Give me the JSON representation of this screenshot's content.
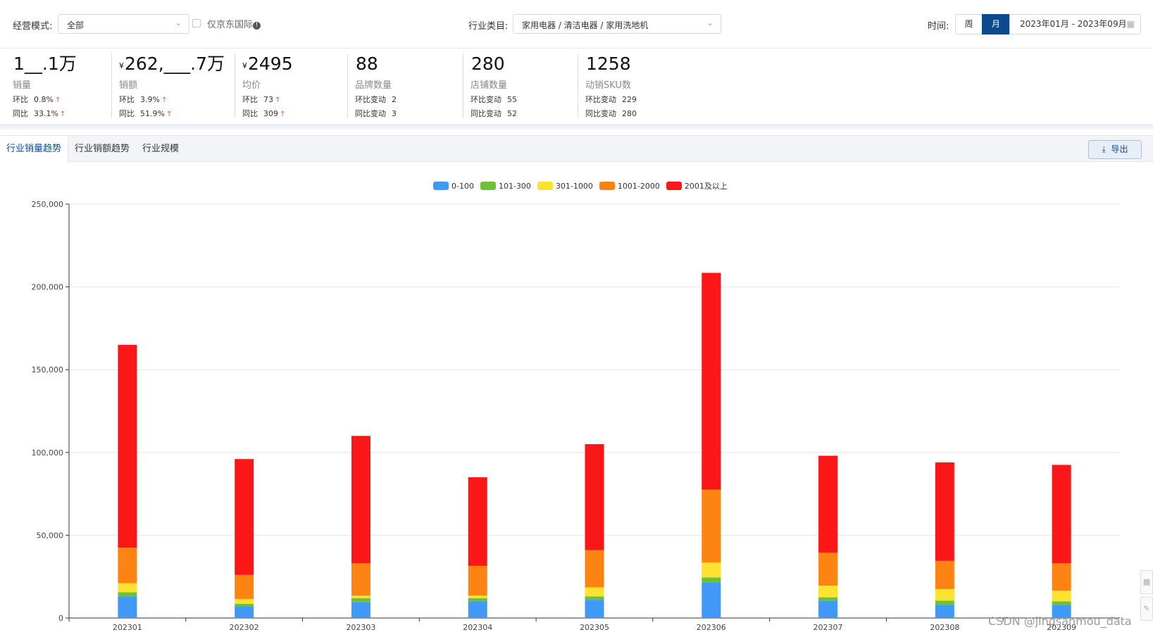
{
  "filters": {
    "mode_label": "经营模式:",
    "mode_value": "全部",
    "jd_intl_label": "仅京东国际",
    "category_label": "行业类目:",
    "category_value": "家用电器 / 清洁电器 / 家用洗地机",
    "time_label": "时间:",
    "week_btn": "周",
    "month_btn": "月",
    "date_range": "2023年01月 - 2023年09月"
  },
  "kpis": [
    {
      "value": "1__.1万",
      "prefix": "",
      "name": "销量",
      "row1_label": "环比",
      "row1_value": "0.8%",
      "row2_label": "同比",
      "row2_value": "33.1%",
      "arrows": true
    },
    {
      "value": "262,___.7万",
      "prefix": "¥",
      "name": "销额",
      "row1_label": "环比",
      "row1_value": "3.9%",
      "row2_label": "同比",
      "row2_value": "51.9%",
      "arrows": true
    },
    {
      "value": "2495",
      "prefix": "¥",
      "name": "均价",
      "row1_label": "环比",
      "row1_value": "73",
      "row2_label": "同比",
      "row2_value": "309",
      "arrows": true
    },
    {
      "value": "88",
      "prefix": "",
      "name": "品牌数量",
      "row1_label": "环比变动",
      "row1_value": "2",
      "row2_label": "同比变动",
      "row2_value": "3",
      "arrows": false
    },
    {
      "value": "280",
      "prefix": "",
      "name": "店铺数量",
      "row1_label": "环比变动",
      "row1_value": "55",
      "row2_label": "同比变动",
      "row2_value": "52",
      "arrows": false
    },
    {
      "value": "1258",
      "prefix": "",
      "name": "动销SKU数",
      "row1_label": "环比变动",
      "row1_value": "229",
      "row2_label": "同比变动",
      "row2_value": "280",
      "arrows": false
    }
  ],
  "tabs": [
    "行业销量趋势",
    "行业销额趋势",
    "行业规模"
  ],
  "export_label": "导出",
  "watermark": "CSDN @jingsanmou_data",
  "chart_data": {
    "type": "bar",
    "stacked": true,
    "categories": [
      "202301",
      "202302",
      "202303",
      "202304",
      "202305",
      "202306",
      "202307",
      "202308",
      "202309"
    ],
    "series": [
      {
        "name": "0-100",
        "color": "#4099f7",
        "values": [
          13000,
          7000,
          9500,
          10000,
          11000,
          21500,
          10500,
          8000,
          8000
        ]
      },
      {
        "name": "101-300",
        "color": "#6cc03a",
        "values": [
          2500,
          1500,
          2500,
          2000,
          2000,
          3000,
          2000,
          2500,
          2000
        ]
      },
      {
        "name": "301-1000",
        "color": "#fde22f",
        "values": [
          5500,
          3000,
          1500,
          1500,
          5500,
          9000,
          7000,
          7000,
          6500
        ]
      },
      {
        "name": "1001-2000",
        "color": "#fd8413",
        "values": [
          21500,
          14500,
          19500,
          18000,
          22500,
          44000,
          20000,
          17000,
          16500
        ]
      },
      {
        "name": "2001及以上",
        "color": "#fb1617",
        "values": [
          122500,
          70000,
          77000,
          53500,
          64000,
          131000,
          58500,
          59500,
          59500
        ]
      }
    ],
    "y_ticks": [
      "0",
      "50,000",
      "100,000",
      "150,000",
      "200,000",
      "250,000"
    ],
    "ylim": [
      0,
      250000
    ],
    "legend_position": "top-center",
    "grid": true
  }
}
